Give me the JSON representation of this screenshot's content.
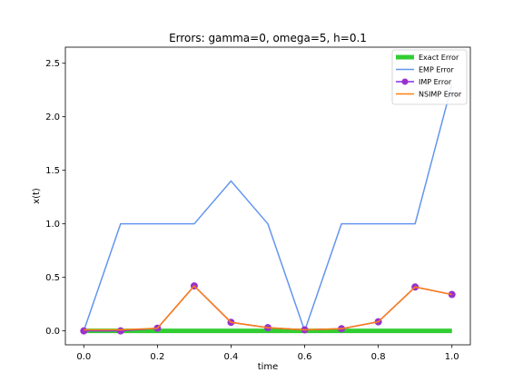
{
  "chart_data": {
    "type": "line",
    "title": "Errors: gamma=0, omega=5, h=0.1",
    "xlabel": "time",
    "ylabel": "x(t)",
    "xlim": [
      -0.05,
      1.05
    ],
    "ylim": [
      -0.13,
      2.65
    ],
    "xticks": [
      0.0,
      0.2,
      0.4,
      0.6,
      0.8,
      1.0
    ],
    "xtick_labels": [
      "0.0",
      "0.2",
      "0.4",
      "0.6",
      "0.8",
      "1.0"
    ],
    "yticks": [
      0.0,
      0.5,
      1.0,
      1.5,
      2.0,
      2.5
    ],
    "ytick_labels": [
      "0.0",
      "0.5",
      "1.0",
      "1.5",
      "2.0",
      "2.5"
    ],
    "grid": false,
    "legend_position": "top-right",
    "x": [
      0.0,
      0.1,
      0.2,
      0.3,
      0.4,
      0.5,
      0.6,
      0.7,
      0.8,
      0.9,
      1.0
    ],
    "series": [
      {
        "name": "Exact Error",
        "color": "#32cd32",
        "style": "thick-line",
        "values": [
          0,
          0,
          0,
          0,
          0,
          0,
          0,
          0,
          0,
          0,
          0
        ]
      },
      {
        "name": "EMP Error",
        "color": "#6495ed",
        "style": "line",
        "values": [
          0.0,
          1.0,
          1.0,
          1.0,
          1.4,
          1.0,
          0.0,
          1.0,
          1.0,
          1.0,
          2.3
        ]
      },
      {
        "name": "IMP Error",
        "color": "#8a2be2",
        "marker_color": "#9932cc",
        "style": "line-markers",
        "values": [
          0.0,
          0.0,
          0.025,
          0.42,
          0.08,
          0.03,
          0.01,
          0.02,
          0.085,
          0.41,
          0.34
        ]
      },
      {
        "name": "NSIMP Error",
        "color": "#ff7f0e",
        "style": "line",
        "values": [
          0.01,
          0.01,
          0.025,
          0.42,
          0.08,
          0.03,
          0.01,
          0.02,
          0.085,
          0.41,
          0.34
        ]
      }
    ]
  }
}
